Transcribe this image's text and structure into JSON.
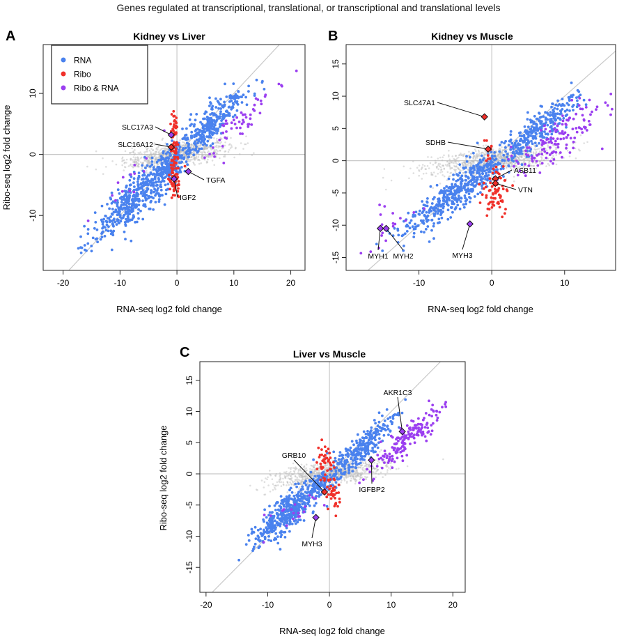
{
  "figure_title": "Genes regulated at transcriptional, translational, or transcriptional and translational levels",
  "legend": {
    "items": [
      {
        "label": "RNA",
        "color": "#4a82ee"
      },
      {
        "label": "Ribo",
        "color": "#f0302a"
      },
      {
        "label": "Ribo & RNA",
        "color": "#9b3ff0"
      }
    ]
  },
  "colors": {
    "rna": "#4a82ee",
    "ribo": "#f0302a",
    "both": "#9b3ff0",
    "background": "#b8b8b8",
    "reference": "#c8c8c8",
    "marker": "#6a6a6a"
  },
  "chart_data": [
    {
      "panel": "A",
      "type": "scatter",
      "title": "Kidney vs Liver",
      "xlabel": "RNA-seq log2 fold change",
      "ylabel": "Ribo-seq log2 fold change",
      "xlim": [
        -23.5,
        22.5
      ],
      "ylim": [
        -19,
        18
      ],
      "xticks": [
        -20,
        -10,
        0,
        10,
        20
      ],
      "yticks": [
        -10,
        0,
        10
      ],
      "legend_position": "top-left",
      "reference_lines": [
        "x=0",
        "y=0",
        "y=x"
      ],
      "clusters": {
        "rna": [
          {
            "cx": -6.5,
            "cy": -6.5,
            "spread": 4.5,
            "width": 1.8,
            "n": 520
          },
          {
            "cx": 6.0,
            "cy": 5.0,
            "spread": 3.5,
            "width": 1.4,
            "n": 330
          },
          {
            "cx": -1.5,
            "cy": -2.0,
            "spread": 1.0,
            "width": 0.9,
            "n": 100
          }
        ],
        "ribo": [
          {
            "cx": -0.5,
            "cy": -3.5,
            "spread": 0.5,
            "width": 1.6,
            "n": 70
          },
          {
            "cx": -0.5,
            "cy": 2.5,
            "spread": 0.4,
            "width": 1.4,
            "n": 55
          }
        ],
        "both": [
          {
            "cx": 11.5,
            "cy": 5.0,
            "spread": 3.0,
            "width": 1.3,
            "n": 55
          },
          {
            "cx": -9.0,
            "cy": -4.0,
            "spread": 2.5,
            "width": 2.2,
            "n": 14
          }
        ],
        "background_n": 900
      },
      "labeled_genes": [
        {
          "gene": "SLC17A3",
          "x": -1.0,
          "y": 3.2,
          "group": "both"
        },
        {
          "gene": "SLC16A12",
          "x": -1.0,
          "y": 1.2,
          "group": "ribo"
        },
        {
          "gene": "TGFA",
          "x": 2.0,
          "y": -2.8,
          "group": "both"
        },
        {
          "gene": "IGF2",
          "x": -0.5,
          "y": -4.0,
          "group": "both"
        }
      ]
    },
    {
      "panel": "B",
      "type": "scatter",
      "title": "Kidney vs Muscle",
      "xlabel": "RNA-seq log2 fold change",
      "ylabel": "",
      "xlim": [
        -20,
        17
      ],
      "ylim": [
        -17,
        18
      ],
      "xticks": [
        -10,
        0,
        10
      ],
      "yticks": [
        -15,
        -10,
        -5,
        0,
        5,
        10,
        15
      ],
      "reference_lines": [
        "x=0",
        "y=0",
        "y=x"
      ],
      "clusters": {
        "rna": [
          {
            "cx": -5.0,
            "cy": -5.0,
            "spread": 4.0,
            "width": 1.5,
            "n": 420
          },
          {
            "cx": 6.0,
            "cy": 4.5,
            "spread": 3.0,
            "width": 1.2,
            "n": 320
          },
          {
            "cx": -1.5,
            "cy": -1.5,
            "spread": 0.8,
            "width": 0.8,
            "n": 60
          }
        ],
        "ribo": [
          {
            "cx": 0.5,
            "cy": -4.5,
            "spread": 0.8,
            "width": 1.4,
            "n": 75
          },
          {
            "cx": -0.5,
            "cy": 2.2,
            "spread": 0.4,
            "width": 0.8,
            "n": 12
          }
        ],
        "both": [
          {
            "cx": 9.5,
            "cy": 3.5,
            "spread": 3.5,
            "width": 1.6,
            "n": 140
          },
          {
            "cx": -14.0,
            "cy": -10.0,
            "spread": 2.0,
            "width": 2.0,
            "n": 18
          }
        ],
        "background_n": 900
      },
      "labeled_genes": [
        {
          "gene": "SLC47A1",
          "x": -1.0,
          "y": 6.8,
          "group": "ribo"
        },
        {
          "gene": "SDHB",
          "x": -0.5,
          "y": 1.8,
          "group": "ribo"
        },
        {
          "gene": "ASB11",
          "x": 0.5,
          "y": -2.8,
          "group": "ribo"
        },
        {
          "gene": "VTN",
          "x": 0.5,
          "y": -3.5,
          "group": "ribo"
        },
        {
          "gene": "MYH1",
          "x": -15.3,
          "y": -10.5,
          "group": "both"
        },
        {
          "gene": "MYH2",
          "x": -14.5,
          "y": -10.5,
          "group": "both"
        },
        {
          "gene": "MYH3",
          "x": -3.0,
          "y": -9.8,
          "group": "both"
        }
      ]
    },
    {
      "panel": "C",
      "type": "scatter",
      "title": "Liver vs Muscle",
      "xlabel": "RNA-seq log2 fold change",
      "ylabel": "Ribo-seq log2 fold change",
      "xlim": [
        -21,
        22
      ],
      "ylim": [
        -19,
        18
      ],
      "xticks": [
        -20,
        -10,
        0,
        10,
        20
      ],
      "yticks": [
        -15,
        -10,
        -5,
        0,
        5,
        10,
        15
      ],
      "reference_lines": [
        "x=0",
        "y=0",
        "y=x"
      ],
      "clusters": {
        "rna": [
          {
            "cx": -6.5,
            "cy": -6.0,
            "spread": 3.0,
            "width": 1.4,
            "n": 470
          },
          {
            "cx": 5.0,
            "cy": 4.0,
            "spread": 3.0,
            "width": 1.2,
            "n": 300
          },
          {
            "cx": -1.5,
            "cy": -1.5,
            "spread": 0.8,
            "width": 0.8,
            "n": 60
          }
        ],
        "ribo": [
          {
            "cx": -0.5,
            "cy": 2.0,
            "spread": 0.6,
            "width": 1.3,
            "n": 45
          },
          {
            "cx": 0.5,
            "cy": -3.2,
            "spread": 0.6,
            "width": 1.0,
            "n": 40
          }
        ],
        "both": [
          {
            "cx": 13.0,
            "cy": 6.0,
            "spread": 3.0,
            "width": 1.2,
            "n": 170
          },
          {
            "cx": -5.0,
            "cy": -5.5,
            "spread": 2.5,
            "width": 1.6,
            "n": 20
          }
        ],
        "background_n": 900
      },
      "labeled_genes": [
        {
          "gene": "AKR1C3",
          "x": 11.8,
          "y": 6.8,
          "group": "both"
        },
        {
          "gene": "GRB10",
          "x": -0.8,
          "y": -2.9,
          "group": "ribo"
        },
        {
          "gene": "IGFBP2",
          "x": 6.8,
          "y": 2.2,
          "group": "both"
        },
        {
          "gene": "MYH3",
          "x": -2.2,
          "y": -7.0,
          "group": "both"
        }
      ]
    }
  ]
}
